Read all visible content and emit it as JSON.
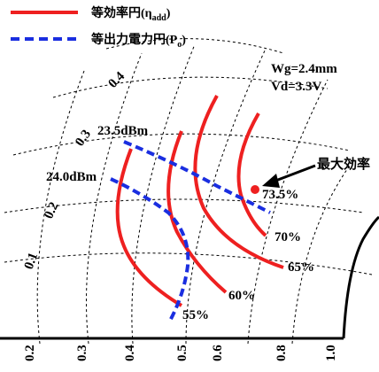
{
  "chart_data": {
    "type": "line",
    "legend": {
      "position": "top-left",
      "entries": [
        {
          "label": "等効率円(η",
          "sub": "add",
          "close": ")",
          "style": "solid",
          "color": "#ee2020"
        },
        {
          "label": "等出力電力円(P",
          "sub": "o",
          "close": ")",
          "style": "dashed",
          "color": "#1a2ee0"
        }
      ]
    },
    "conditions": [
      "Wg=2.4mm",
      "Vd=3.3V"
    ],
    "axis_ticks": {
      "bottom": [
        "0.2",
        "0.3",
        "0.4",
        "0.5",
        "0.6",
        "0.8",
        "1.0"
      ],
      "left": [
        "0.1",
        "0.2",
        "0.3",
        "0.4"
      ]
    },
    "efficiency_contours": [
      "55%",
      "60%",
      "65%",
      "70%",
      "73.5%"
    ],
    "power_contours": [
      "24.0dBm",
      "23.5dBm"
    ],
    "max_efficiency": {
      "label": "最大効率",
      "value": "73.5%",
      "color": "#ee2020"
    },
    "colors": {
      "efficiency": "#ee2020",
      "power": "#1a2ee0",
      "grid": "#000000"
    }
  }
}
